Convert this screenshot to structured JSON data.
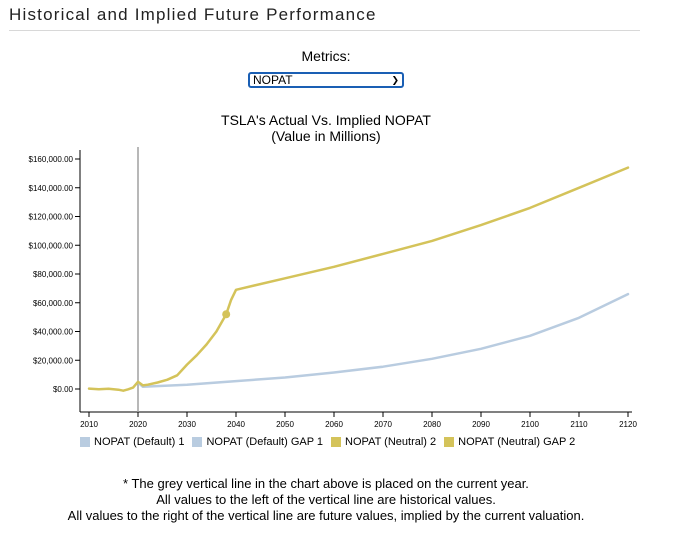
{
  "section": {
    "title": "Historical and Implied Future Performance"
  },
  "metrics": {
    "label": "Metrics:",
    "selected": "NOPAT"
  },
  "chart_data": {
    "type": "line",
    "title": "TSLA's Actual Vs. Implied NOPAT",
    "subtitle": "(Value in Millions)",
    "xlim": [
      2009,
      2120
    ],
    "ylim": [
      -15000,
      160000
    ],
    "x_ticks": [
      2010,
      2020,
      2030,
      2040,
      2050,
      2060,
      2070,
      2080,
      2090,
      2100,
      2110,
      2120
    ],
    "y_ticks": [
      0,
      20000,
      40000,
      60000,
      80000,
      100000,
      120000,
      140000,
      160000
    ],
    "y_tick_labels": [
      "$0.00",
      "$20,000.00",
      "$40,000.00",
      "$60,000.00",
      "$80,000.00",
      "$100,000.00",
      "$120,000.00",
      "$140,000.00",
      "$160,000.00"
    ],
    "current_year": 2020,
    "grid": false,
    "legend_placement": "bottom",
    "series": [
      {
        "name": "NOPAT (Default) 1",
        "color": "#b9cce0",
        "x": [],
        "y": []
      },
      {
        "name": "NOPAT (Default) GAP 1",
        "color": "#b9cce0",
        "x": [
          2020,
          2021,
          2030,
          2040,
          2050,
          2060,
          2070,
          2080,
          2090,
          2100,
          2110,
          2120
        ],
        "y": [
          4500,
          1500,
          3000,
          5500,
          8000,
          11500,
          15500,
          21000,
          28000,
          37000,
          49500,
          66000
        ]
      },
      {
        "name": "NOPAT (Neutral) 2",
        "color": "#d4c35a",
        "x": [
          2010,
          2012,
          2014,
          2016,
          2017,
          2018,
          2019,
          2020,
          2021,
          2022,
          2024,
          2026,
          2028,
          2030,
          2032,
          2034,
          2036,
          2038
        ],
        "y": [
          300,
          -200,
          200,
          -500,
          -1200,
          -200,
          1000,
          5000,
          2500,
          3000,
          4500,
          6500,
          9500,
          17000,
          23500,
          31000,
          40000,
          52000
        ],
        "marker": {
          "x": 2038,
          "y": 52000
        }
      },
      {
        "name": "NOPAT (Neutral) GAP 2",
        "color": "#d4c35a",
        "x": [
          2038,
          2039,
          2040,
          2050,
          2060,
          2070,
          2080,
          2090,
          2100,
          2110,
          2120
        ],
        "y": [
          52000,
          62000,
          69000,
          77000,
          85000,
          94000,
          103000,
          114000,
          126000,
          140000,
          154000
        ]
      }
    ]
  },
  "notes": [
    "* The grey vertical line in the chart above is placed on the current year.",
    "All values to the left of the vertical line are historical values.",
    "All values to the right of the vertical line are future values, implied by the current valuation."
  ]
}
